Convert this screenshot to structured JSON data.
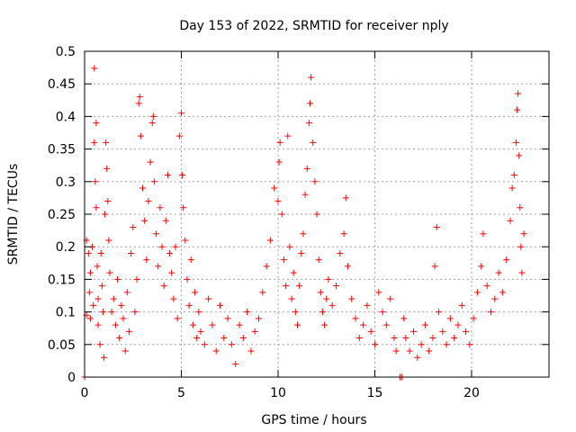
{
  "chart_data": {
    "type": "scatter",
    "title": "Day 153 of 2022, SRMTID for receiver nply",
    "xlabel": "GPS time / hours",
    "ylabel": "SRMTID / TECUs",
    "xlim": [
      0,
      24
    ],
    "ylim": [
      0,
      0.5
    ],
    "xticks": [
      0,
      5,
      10,
      15,
      20
    ],
    "xtick_labels": [
      "0",
      "5",
      "10",
      "15",
      "20"
    ],
    "yticks": [
      0,
      0.05,
      0.1,
      0.15,
      0.2,
      0.25,
      0.3,
      0.35,
      0.4,
      0.45,
      0.5
    ],
    "ytick_labels": [
      "0",
      "0.05",
      "0.1",
      "0.15",
      "0.2",
      "0.25",
      "0.3",
      "0.35",
      "0.4",
      "0.45",
      "0.5"
    ],
    "grid": true,
    "marker": "plus",
    "color": "#ff0000",
    "series": [
      {
        "name": "SRMTID",
        "points": [
          [
            0.0,
            0.0
          ],
          [
            0.1,
            0.095
          ],
          [
            0.1,
            0.21
          ],
          [
            0.2,
            0.19
          ],
          [
            0.25,
            0.13
          ],
          [
            0.3,
            0.16
          ],
          [
            0.3,
            0.09
          ],
          [
            0.4,
            0.2
          ],
          [
            0.45,
            0.11
          ],
          [
            0.5,
            0.474
          ],
          [
            0.5,
            0.36
          ],
          [
            0.55,
            0.3
          ],
          [
            0.6,
            0.39
          ],
          [
            0.6,
            0.26
          ],
          [
            0.65,
            0.17
          ],
          [
            0.7,
            0.12
          ],
          [
            0.7,
            0.08
          ],
          [
            0.8,
            0.05
          ],
          [
            0.85,
            0.19
          ],
          [
            0.9,
            0.14
          ],
          [
            0.95,
            0.1
          ],
          [
            1.0,
            0.03
          ],
          [
            1.05,
            0.25
          ],
          [
            1.1,
            0.36
          ],
          [
            1.15,
            0.32
          ],
          [
            1.2,
            0.27
          ],
          [
            1.25,
            0.21
          ],
          [
            1.3,
            0.16
          ],
          [
            1.4,
            0.1
          ],
          [
            1.5,
            0.12
          ],
          [
            1.6,
            0.08
          ],
          [
            1.7,
            0.15
          ],
          [
            1.8,
            0.06
          ],
          [
            1.9,
            0.11
          ],
          [
            2.0,
            0.09
          ],
          [
            2.1,
            0.04
          ],
          [
            2.2,
            0.13
          ],
          [
            2.3,
            0.07
          ],
          [
            2.4,
            0.19
          ],
          [
            2.5,
            0.23
          ],
          [
            2.6,
            0.1
          ],
          [
            2.7,
            0.15
          ],
          [
            2.8,
            0.42
          ],
          [
            2.85,
            0.43
          ],
          [
            2.9,
            0.37
          ],
          [
            3.0,
            0.29
          ],
          [
            3.1,
            0.24
          ],
          [
            3.2,
            0.18
          ],
          [
            3.3,
            0.27
          ],
          [
            3.4,
            0.33
          ],
          [
            3.5,
            0.39
          ],
          [
            3.55,
            0.4
          ],
          [
            3.6,
            0.3
          ],
          [
            3.7,
            0.22
          ],
          [
            3.8,
            0.17
          ],
          [
            3.9,
            0.26
          ],
          [
            4.0,
            0.2
          ],
          [
            4.1,
            0.14
          ],
          [
            4.2,
            0.24
          ],
          [
            4.3,
            0.31
          ],
          [
            4.4,
            0.19
          ],
          [
            4.5,
            0.16
          ],
          [
            4.6,
            0.12
          ],
          [
            4.7,
            0.2
          ],
          [
            4.8,
            0.09
          ],
          [
            4.9,
            0.37
          ],
          [
            5.0,
            0.405
          ],
          [
            5.05,
            0.31
          ],
          [
            5.1,
            0.26
          ],
          [
            5.2,
            0.21
          ],
          [
            5.3,
            0.15
          ],
          [
            5.4,
            0.11
          ],
          [
            5.5,
            0.18
          ],
          [
            5.6,
            0.08
          ],
          [
            5.7,
            0.13
          ],
          [
            5.8,
            0.06
          ],
          [
            5.9,
            0.1
          ],
          [
            6.0,
            0.07
          ],
          [
            6.2,
            0.05
          ],
          [
            6.4,
            0.12
          ],
          [
            6.6,
            0.08
          ],
          [
            6.8,
            0.04
          ],
          [
            7.0,
            0.11
          ],
          [
            7.2,
            0.06
          ],
          [
            7.4,
            0.09
          ],
          [
            7.6,
            0.05
          ],
          [
            7.8,
            0.02
          ],
          [
            8.0,
            0.08
          ],
          [
            8.2,
            0.06
          ],
          [
            8.4,
            0.1
          ],
          [
            8.6,
            0.04
          ],
          [
            8.8,
            0.07
          ],
          [
            9.0,
            0.09
          ],
          [
            9.2,
            0.13
          ],
          [
            9.4,
            0.17
          ],
          [
            9.6,
            0.21
          ],
          [
            9.8,
            0.29
          ],
          [
            10.0,
            0.27
          ],
          [
            10.05,
            0.33
          ],
          [
            10.1,
            0.36
          ],
          [
            10.2,
            0.25
          ],
          [
            10.3,
            0.18
          ],
          [
            10.4,
            0.14
          ],
          [
            10.5,
            0.37
          ],
          [
            10.6,
            0.2
          ],
          [
            10.7,
            0.12
          ],
          [
            10.8,
            0.16
          ],
          [
            10.9,
            0.1
          ],
          [
            11.0,
            0.08
          ],
          [
            11.1,
            0.14
          ],
          [
            11.2,
            0.19
          ],
          [
            11.3,
            0.22
          ],
          [
            11.4,
            0.28
          ],
          [
            11.5,
            0.32
          ],
          [
            11.6,
            0.39
          ],
          [
            11.65,
            0.42
          ],
          [
            11.7,
            0.46
          ],
          [
            11.8,
            0.36
          ],
          [
            11.9,
            0.3
          ],
          [
            12.0,
            0.25
          ],
          [
            12.1,
            0.18
          ],
          [
            12.2,
            0.13
          ],
          [
            12.3,
            0.1
          ],
          [
            12.4,
            0.08
          ],
          [
            12.5,
            0.12
          ],
          [
            12.6,
            0.15
          ],
          [
            12.8,
            0.11
          ],
          [
            13.0,
            0.14
          ],
          [
            13.2,
            0.19
          ],
          [
            13.4,
            0.22
          ],
          [
            13.5,
            0.275
          ],
          [
            13.6,
            0.17
          ],
          [
            13.8,
            0.12
          ],
          [
            14.0,
            0.09
          ],
          [
            14.2,
            0.06
          ],
          [
            14.4,
            0.08
          ],
          [
            14.6,
            0.11
          ],
          [
            14.8,
            0.07
          ],
          [
            15.0,
            0.05
          ],
          [
            15.2,
            0.13
          ],
          [
            15.4,
            0.1
          ],
          [
            15.6,
            0.08
          ],
          [
            15.8,
            0.12
          ],
          [
            16.0,
            0.06
          ],
          [
            16.1,
            0.04
          ],
          [
            16.3,
            0.0
          ],
          [
            16.4,
            0.0
          ],
          [
            16.5,
            0.09
          ],
          [
            16.6,
            0.06
          ],
          [
            16.8,
            0.04
          ],
          [
            17.0,
            0.07
          ],
          [
            17.2,
            0.03
          ],
          [
            17.4,
            0.05
          ],
          [
            17.6,
            0.08
          ],
          [
            17.8,
            0.04
          ],
          [
            18.0,
            0.06
          ],
          [
            18.1,
            0.17
          ],
          [
            18.2,
            0.23
          ],
          [
            18.3,
            0.1
          ],
          [
            18.5,
            0.07
          ],
          [
            18.7,
            0.05
          ],
          [
            18.9,
            0.09
          ],
          [
            19.1,
            0.06
          ],
          [
            19.3,
            0.08
          ],
          [
            19.5,
            0.11
          ],
          [
            19.7,
            0.07
          ],
          [
            19.9,
            0.05
          ],
          [
            20.1,
            0.09
          ],
          [
            20.3,
            0.13
          ],
          [
            20.5,
            0.17
          ],
          [
            20.6,
            0.22
          ],
          [
            20.8,
            0.14
          ],
          [
            21.0,
            0.1
          ],
          [
            21.2,
            0.12
          ],
          [
            21.4,
            0.16
          ],
          [
            21.6,
            0.13
          ],
          [
            21.8,
            0.18
          ],
          [
            22.0,
            0.24
          ],
          [
            22.1,
            0.29
          ],
          [
            22.2,
            0.31
          ],
          [
            22.3,
            0.36
          ],
          [
            22.35,
            0.41
          ],
          [
            22.4,
            0.435
          ],
          [
            22.45,
            0.34
          ],
          [
            22.5,
            0.26
          ],
          [
            22.55,
            0.2
          ],
          [
            22.6,
            0.16
          ],
          [
            22.7,
            0.22
          ]
        ]
      }
    ]
  }
}
